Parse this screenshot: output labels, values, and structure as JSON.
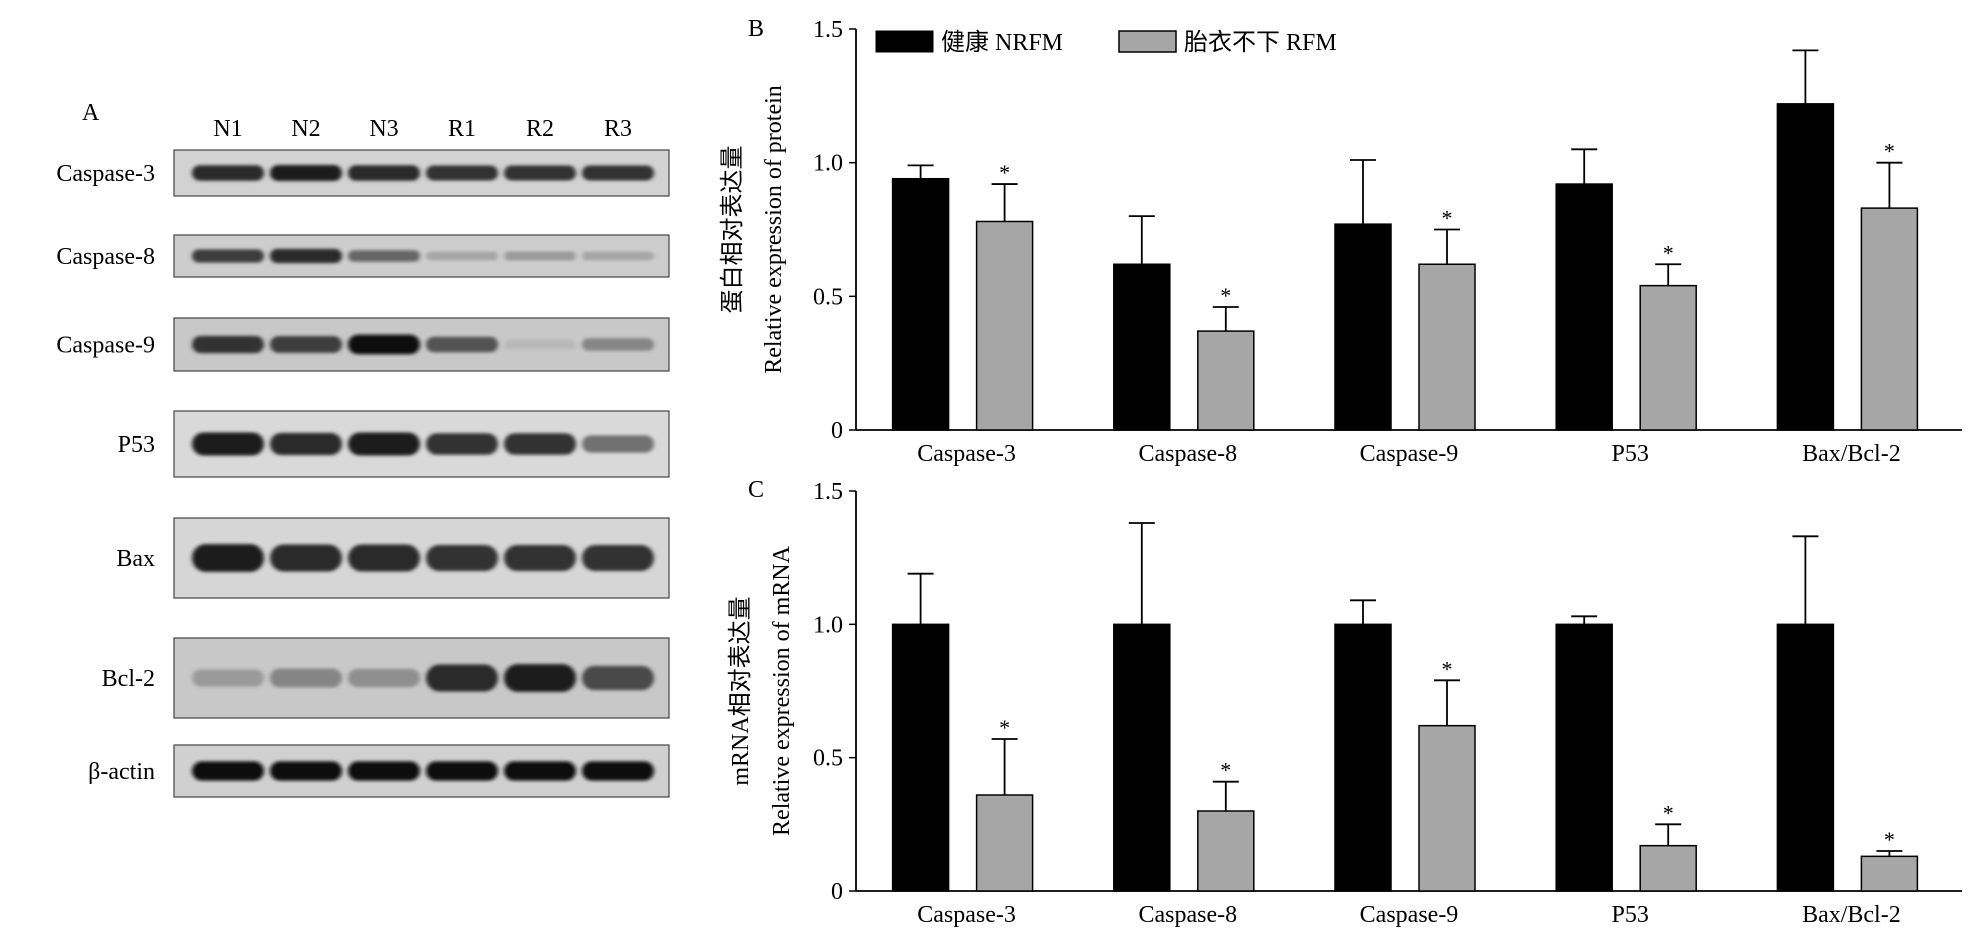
{
  "panel_a": {
    "label": "A",
    "lanes": [
      "N1",
      "N2",
      "N3",
      "R1",
      "R2",
      "R3"
    ],
    "blots": [
      {
        "name": "Caspase-3",
        "intensity": [
          0.85,
          0.9,
          0.85,
          0.8,
          0.8,
          0.8
        ],
        "background": "#d2d2d2"
      },
      {
        "name": "Caspase-8",
        "intensity": [
          0.75,
          0.85,
          0.55,
          0.25,
          0.3,
          0.25
        ],
        "background": "#cdcdcd"
      },
      {
        "name": "Caspase-9",
        "intensity": [
          0.8,
          0.75,
          1.0,
          0.65,
          0.15,
          0.4
        ],
        "background": "#c8c8c8"
      },
      {
        "name": "P53",
        "intensity": [
          0.9,
          0.85,
          0.9,
          0.8,
          0.8,
          0.5
        ],
        "background": "#d9d9d9"
      },
      {
        "name": "Bax",
        "intensity": [
          0.9,
          0.85,
          0.85,
          0.8,
          0.8,
          0.8
        ],
        "background": "#d6d6d6"
      },
      {
        "name": "Bcl-2",
        "intensity": [
          0.3,
          0.4,
          0.35,
          0.85,
          0.9,
          0.7
        ],
        "background": "#c8c8c8"
      },
      {
        "name": "β-actin",
        "intensity": [
          1.0,
          1.0,
          1.0,
          1.0,
          1.0,
          1.0
        ],
        "background": "#d0d0d0"
      }
    ]
  },
  "legend": {
    "items": [
      {
        "label": "健康 NRFM",
        "color": "#000000"
      },
      {
        "label": "胎衣不下 RFM",
        "color": "#a6a6a6"
      }
    ]
  },
  "chart_data": [
    {
      "type": "bar",
      "panel_label": "B",
      "ylabel_line1": "蛋白相对表达量",
      "ylabel_line2": "Relative expression of protein",
      "categories": [
        "Caspase-3",
        "Caspase-8",
        "Caspase-9",
        "P53",
        "Bax/Bcl-2"
      ],
      "ylim": [
        0,
        1.5
      ],
      "yticks": [
        "0",
        "0.5",
        "1.0",
        "1.5"
      ],
      "series": [
        {
          "name": "健康 NRFM",
          "color": "#000000",
          "values": [
            0.94,
            0.62,
            0.77,
            0.92,
            1.22
          ],
          "errors": [
            0.05,
            0.18,
            0.24,
            0.13,
            0.2
          ],
          "marks": [
            "",
            "",
            "",
            "",
            ""
          ]
        },
        {
          "name": "胎衣不下 RFM",
          "color": "#a6a6a6",
          "values": [
            0.78,
            0.37,
            0.62,
            0.54,
            0.83
          ],
          "errors": [
            0.14,
            0.09,
            0.13,
            0.08,
            0.17
          ],
          "marks": [
            "*",
            "*",
            "*",
            "*",
            "*"
          ]
        }
      ]
    },
    {
      "type": "bar",
      "panel_label": "C",
      "ylabel_line1": "mRNA相对表达量",
      "ylabel_line2": "Relative expression of mRNA",
      "categories": [
        "Caspase-3",
        "Caspase-8",
        "Caspase-9",
        "P53",
        "Bax/Bcl-2"
      ],
      "ylim": [
        0,
        1.5
      ],
      "yticks": [
        "0",
        "0.5",
        "1.0",
        "1.5"
      ],
      "series": [
        {
          "name": "健康 NRFM",
          "color": "#000000",
          "values": [
            1.0,
            1.0,
            1.0,
            1.0,
            1.0
          ],
          "errors": [
            0.19,
            0.38,
            0.09,
            0.03,
            0.33
          ],
          "marks": [
            "",
            "",
            "",
            "",
            ""
          ]
        },
        {
          "name": "胎衣不下 RFM",
          "color": "#a6a6a6",
          "values": [
            0.36,
            0.3,
            0.62,
            0.17,
            0.13
          ],
          "errors": [
            0.21,
            0.11,
            0.17,
            0.08,
            0.02
          ],
          "marks": [
            "*",
            "*",
            "*",
            "*",
            "*"
          ]
        }
      ]
    }
  ]
}
